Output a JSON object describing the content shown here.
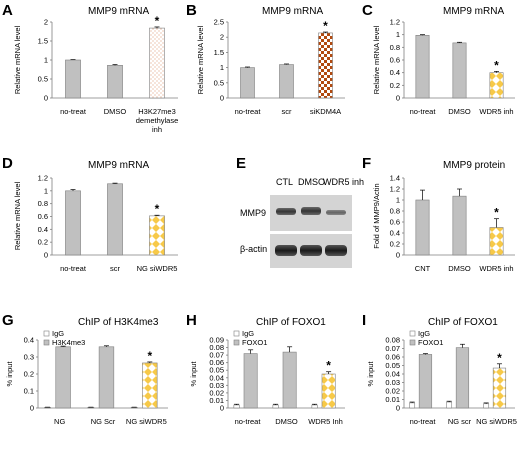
{
  "colors": {
    "gray": "#c0c0c0",
    "white": "#ffffff",
    "axis": "#7f7f7f",
    "yellow": "#f7c948",
    "brown": "#b24a10",
    "dot": "#e0a080"
  },
  "chart_data": [
    {
      "panel": "A",
      "type": "bar",
      "title": "MMP9 mRNA",
      "ylabel": "Relative mRNA level",
      "categories": [
        [
          "no-treat"
        ],
        [
          "DMSO"
        ],
        [
          "H3K27me3",
          "demethylase",
          "inh"
        ]
      ],
      "values": [
        1.0,
        0.86,
        1.84
      ],
      "errors": [
        0.01,
        0.02,
        0.03
      ],
      "fills": [
        "gray",
        "gray",
        "dots"
      ],
      "stars": [
        false,
        false,
        true
      ],
      "ylim": [
        0,
        2
      ],
      "yticks": [
        "0",
        "0.5",
        "1",
        "1.5",
        "2"
      ],
      "ytick_values": [
        0,
        0.5,
        1,
        1.5,
        2
      ]
    },
    {
      "panel": "B",
      "type": "bar",
      "title": "MMP9 mRNA",
      "ylabel": "Relative mRNA level",
      "categories": [
        [
          "no-treat"
        ],
        [
          "scr"
        ],
        [
          "siKDM4A"
        ]
      ],
      "values": [
        1.0,
        1.1,
        2.14
      ],
      "errors": [
        0.02,
        0.02,
        0.03
      ],
      "fills": [
        "gray",
        "gray",
        "checker-brown"
      ],
      "stars": [
        false,
        false,
        true
      ],
      "ylim": [
        0,
        2.5
      ],
      "yticks": [
        "0",
        "0.5",
        "1",
        "1.5",
        "2",
        "2.5"
      ],
      "ytick_values": [
        0,
        0.5,
        1,
        1.5,
        2,
        2.5
      ]
    },
    {
      "panel": "C",
      "type": "bar",
      "title": "MMP9 mRNA",
      "ylabel": "Relative mRNA level",
      "categories": [
        [
          "no-treat"
        ],
        [
          "DMSO"
        ],
        [
          "WDR5 inh"
        ]
      ],
      "values": [
        0.99,
        0.87,
        0.4
      ],
      "errors": [
        0.01,
        0.01,
        0.02
      ],
      "fills": [
        "gray",
        "gray",
        "checker-yellow"
      ],
      "stars": [
        false,
        false,
        true
      ],
      "ylim": [
        0,
        1.2
      ],
      "yticks": [
        "0",
        "0.2",
        "0.4",
        "0.6",
        "0.8",
        "1",
        "1.2"
      ],
      "ytick_values": [
        0,
        0.2,
        0.4,
        0.6,
        0.8,
        1,
        1.2
      ]
    },
    {
      "panel": "D",
      "type": "bar",
      "title": "MMP9 mRNA",
      "ylabel": "Relative mRNA level",
      "categories": [
        [
          "no-treat"
        ],
        [
          "scr"
        ],
        [
          "NG siWDR5"
        ]
      ],
      "values": [
        1.0,
        1.11,
        0.61
      ],
      "errors": [
        0.02,
        0.01,
        0.01
      ],
      "fills": [
        "gray",
        "gray",
        "checker-yellow"
      ],
      "stars": [
        false,
        false,
        true
      ],
      "ylim": [
        0,
        1.2
      ],
      "yticks": [
        "0",
        "0.2",
        "0.4",
        "0.6",
        "0.8",
        "1",
        "1.2"
      ],
      "ytick_values": [
        0,
        0.2,
        0.4,
        0.6,
        0.8,
        1,
        1.2
      ]
    },
    {
      "panel": "F",
      "type": "bar",
      "title": "MMP9 protein",
      "ylabel": "Fold of MMP9/Actin",
      "categories": [
        [
          "CNT"
        ],
        [
          "DMSO"
        ],
        [
          "WDR5 inh"
        ]
      ],
      "values": [
        1.0,
        1.07,
        0.5
      ],
      "errors": [
        0.18,
        0.13,
        0.16
      ],
      "fills": [
        "gray",
        "gray",
        "checker-yellow"
      ],
      "stars": [
        false,
        false,
        true
      ],
      "ylim": [
        0,
        1.4
      ],
      "yticks": [
        "0",
        "0.2",
        "0.4",
        "0.6",
        "0.8",
        "1",
        "1.2",
        "1.4"
      ],
      "ytick_values": [
        0,
        0.2,
        0.4,
        0.6,
        0.8,
        1,
        1.2,
        1.4
      ]
    },
    {
      "panel": "G",
      "type": "bar",
      "title": "ChIP of H3K4me3",
      "ylabel": "% input",
      "categories": [
        [
          "NG"
        ],
        [
          "NG Scr"
        ],
        [
          "NG siWDR5"
        ]
      ],
      "series": [
        {
          "name": "IgG",
          "values": [
            0.004,
            0.004,
            0.004
          ],
          "errors": [
            0.001,
            0.001,
            0.001
          ],
          "fill": "white"
        },
        {
          "name": "H3K4me3",
          "values": [
            0.36,
            0.36,
            0.265
          ],
          "errors": [
            0.004,
            0.006,
            0.006
          ],
          "fill": "gray",
          "last_fill": "checker-yellow"
        }
      ],
      "star_index": 2,
      "ylim": [
        0,
        0.4
      ],
      "yticks": [
        "0",
        "0.1",
        "0.2",
        "0.3",
        "0.4"
      ],
      "ytick_values": [
        0,
        0.1,
        0.2,
        0.3,
        0.4
      ]
    },
    {
      "panel": "H",
      "type": "bar",
      "title": "ChIP of FOXO1",
      "ylabel": "% input",
      "categories": [
        [
          "no-treat"
        ],
        [
          "DMSO"
        ],
        [
          "WDR5 Inh"
        ]
      ],
      "series": [
        {
          "name": "IgG",
          "values": [
            0.004,
            0.004,
            0.004
          ],
          "errors": [
            0.001,
            0.001,
            0.001
          ],
          "fill": "white"
        },
        {
          "name": "FOXO1",
          "values": [
            0.072,
            0.074,
            0.045
          ],
          "errors": [
            0.005,
            0.007,
            0.003
          ],
          "fill": "gray",
          "last_fill": "checker-yellow"
        }
      ],
      "star_index": 2,
      "ylim": [
        0,
        0.09
      ],
      "yticks": [
        "0",
        "0.01",
        "0.02",
        "0.03",
        "0.04",
        "0.05",
        "0.06",
        "0.07",
        "0.08",
        "0.09"
      ],
      "ytick_values": [
        0,
        0.01,
        0.02,
        0.03,
        0.04,
        0.05,
        0.06,
        0.07,
        0.08,
        0.09
      ]
    },
    {
      "panel": "I",
      "type": "bar",
      "title": "ChIP of FOXO1",
      "ylabel": "% input",
      "categories": [
        [
          "no-treat"
        ],
        [
          "NG scr"
        ],
        [
          "NG siWDR5"
        ]
      ],
      "series": [
        {
          "name": "IgG",
          "values": [
            0.006,
            0.007,
            0.005
          ],
          "errors": [
            0.001,
            0.001,
            0.001
          ],
          "fill": "white"
        },
        {
          "name": "FOXO1",
          "values": [
            0.063,
            0.071,
            0.047
          ],
          "errors": [
            0.001,
            0.004,
            0.005
          ],
          "fill": "gray",
          "last_fill": "checker-yellow"
        }
      ],
      "star_index": 2,
      "ylim": [
        0,
        0.08
      ],
      "yticks": [
        "0",
        "0.01",
        "0.02",
        "0.03",
        "0.04",
        "0.05",
        "0.06",
        "0.07",
        "0.08"
      ],
      "ytick_values": [
        0,
        0.01,
        0.02,
        0.03,
        0.04,
        0.05,
        0.06,
        0.07,
        0.08
      ]
    }
  ],
  "blot": {
    "letter": "E",
    "lanes": [
      "CTL",
      "DMSO",
      "WDR5 inh"
    ],
    "rows": [
      "MMP9",
      "β-actin"
    ]
  },
  "star_symbol": "*"
}
